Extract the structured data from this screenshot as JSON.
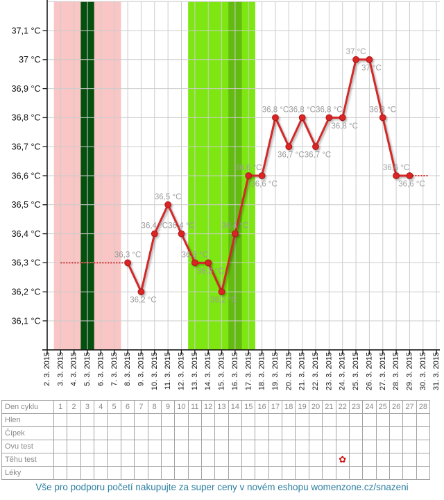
{
  "chart_data": {
    "type": "line",
    "title": "",
    "xlabel": "",
    "ylabel": "",
    "x": [
      "2. 3. 2015",
      "3. 3. 2015",
      "4. 3. 2015",
      "5. 3. 2015",
      "6. 3. 2015",
      "7. 3. 2015",
      "8. 3. 2015",
      "9. 3. 2015",
      "10. 3. 2015",
      "11. 3. 2015",
      "12. 3. 2015",
      "13. 3. 2015",
      "14. 3. 2015",
      "15. 3. 2015",
      "16. 3. 2015",
      "17. 3. 2015",
      "18. 3. 2015",
      "19. 3. 2015",
      "20. 3. 2015",
      "21. 3. 2015",
      "22. 3. 2015",
      "23. 3. 2015",
      "24. 3. 2015",
      "25. 3. 2015",
      "26. 3. 2015",
      "27. 3. 2015",
      "28. 3. 2015",
      "29. 3. 2015",
      "30. 3. 2015",
      "31. 3. 2015"
    ],
    "series": [
      {
        "name": "temperature",
        "values": [
          null,
          null,
          null,
          null,
          null,
          null,
          36.3,
          36.2,
          36.4,
          36.5,
          36.4,
          36.3,
          36.3,
          36.2,
          36.4,
          36.6,
          36.6,
          36.8,
          36.7,
          36.8,
          36.7,
          36.8,
          36.8,
          37.0,
          37.0,
          36.8,
          36.6,
          36.6,
          null,
          null
        ]
      }
    ],
    "point_labels": [
      {
        "i": 6,
        "text": "36,3 °C",
        "pos": "above"
      },
      {
        "i": 7,
        "text": "36,2 °C",
        "pos": "below"
      },
      {
        "i": 8,
        "text": "36,4 °C",
        "pos": "above"
      },
      {
        "i": 9,
        "text": "36,5 °C",
        "pos": "above"
      },
      {
        "i": 10,
        "text": "36,4 °C",
        "pos": "above"
      },
      {
        "i": 11,
        "text": "36,3 °C",
        "pos": "above"
      },
      {
        "i": 12,
        "text": "36,3 °C",
        "pos": "below"
      },
      {
        "i": 13,
        "text": "36,2 °C",
        "pos": "below"
      },
      {
        "i": 14,
        "text": "36,4 °C",
        "pos": "above"
      },
      {
        "i": 15,
        "text": "36,6 °C",
        "pos": "above"
      },
      {
        "i": 16,
        "text": "36,6 °C",
        "pos": "below"
      },
      {
        "i": 17,
        "text": "36,8 °C",
        "pos": "above"
      },
      {
        "i": 18,
        "text": "36,7 °C",
        "pos": "below"
      },
      {
        "i": 19,
        "text": "36,8 °C",
        "pos": "above"
      },
      {
        "i": 20,
        "text": "36,7 °C",
        "pos": "below"
      },
      {
        "i": 21,
        "text": "36,8 °C",
        "pos": "above"
      },
      {
        "i": 22,
        "text": "36,8 °C",
        "pos": "below"
      },
      {
        "i": 23,
        "text": "37 °C",
        "pos": "above"
      },
      {
        "i": 24,
        "text": "37 °C",
        "pos": "below"
      },
      {
        "i": 25,
        "text": "36,8 °C",
        "pos": "above"
      },
      {
        "i": 26,
        "text": "36,6 °C",
        "pos": "above"
      },
      {
        "i": 27,
        "text": "36,6 °C",
        "pos": "below"
      }
    ],
    "ylim": [
      36.0,
      37.2
    ],
    "yticks": [
      {
        "v": 37.1,
        "label": "37,1 °C"
      },
      {
        "v": 37.0,
        "label": "37 °C"
      },
      {
        "v": 36.9,
        "label": "36,9 °C"
      },
      {
        "v": 36.8,
        "label": "36,8 °C"
      },
      {
        "v": 36.7,
        "label": "36,7 °C"
      },
      {
        "v": 36.6,
        "label": "36,6 °C"
      },
      {
        "v": 36.5,
        "label": "36,5 °C"
      },
      {
        "v": 36.4,
        "label": "36,4 °C"
      },
      {
        "v": 36.3,
        "label": "36,3 °C"
      },
      {
        "v": 36.2,
        "label": "36,2 °C"
      },
      {
        "v": 36.1,
        "label": "36,1 °C"
      }
    ],
    "grid": true,
    "legend": "none",
    "regions": [
      {
        "name": "menstruation",
        "from_i": 1,
        "to_i": 5,
        "color": "#f9c5c5"
      },
      {
        "name": "dark-day-band",
        "from_i": 3,
        "to_i": 3,
        "color": "#06500f"
      },
      {
        "name": "fertile-window",
        "from_i": 11,
        "to_i": 15,
        "color": "#7ee712"
      },
      {
        "name": "ovulation-day",
        "from_i": 14,
        "to_i": 14,
        "color": "#63ba10"
      }
    ],
    "coverlines": [
      {
        "temp": 36.3,
        "from_i": 1,
        "to_i": 6
      },
      {
        "temp": 36.6,
        "from_i": 27,
        "to_i": 28.4
      }
    ],
    "line_color": "#d32828",
    "point_fill": "#dd2424",
    "point_stroke": "#a81818",
    "grid_color": "#cccccc",
    "axis_color": "#1a1a1a",
    "point_label_color": "#9c9c9c"
  },
  "table": {
    "header": "Den cyklu",
    "days": [
      "1",
      "2",
      "3",
      "4",
      "5",
      "6",
      "7",
      "8",
      "9",
      "10",
      "11",
      "12",
      "13",
      "14",
      "15",
      "16",
      "17",
      "18",
      "19",
      "20",
      "21",
      "22",
      "23",
      "24",
      "25",
      "26",
      "27",
      "28"
    ],
    "rows": [
      "Hlen",
      "Čípek",
      "Ovu test",
      "Těhu test",
      "Léky"
    ],
    "marker": {
      "row": "Těhu test",
      "day": 22,
      "symbol": "✿",
      "name": "pregnancy-test-flower",
      "color": "#cf1111"
    }
  },
  "footer": {
    "text": "Vše pro podporu početí nakupujte za super ceny v novém eshopu womenzone.cz/snazeni"
  }
}
